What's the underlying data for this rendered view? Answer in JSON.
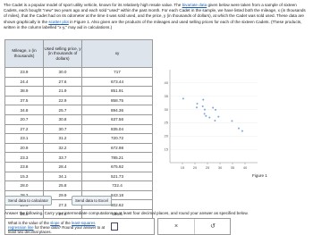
{
  "intro": [
    "The Cadet is a popular model of sport utility vehicle, known for its relatively high resale value. The ",
    "bivariate data",
    " given below were taken from a sample of sixteen Cadets, each bought \"new\" two years ago and each sold \"used\" within the past month. For each Cadet in the sample, we have listed both the mileage, x (in thousands of miles), that the Cadet had on its odometer at the time it was sold used, and the price, y (in thousands of dollars), at which the Cadet was sold used. These data are shown graphically in the ",
    "scatter plot",
    " in Figure 1. Also given are the products of the mileages and used selling prices for each of the sixteen Cadets. (These products, written in the column labelled \"x·y,\" may aid in calculations.)"
  ],
  "table": {
    "headers": [
      "Mileage, x (in thousands)",
      "Used selling price, y (in thousands of dollars)",
      "xy"
    ],
    "rows": [
      [
        "23.9",
        "30.0",
        "717"
      ],
      [
        "24.4",
        "27.6",
        "673.44"
      ],
      [
        "38.9",
        "21.9",
        "851.91"
      ],
      [
        "37.5",
        "22.9",
        "858.75"
      ],
      [
        "34.8",
        "25.7",
        "894.36"
      ],
      [
        "20.7",
        "30.8",
        "637.56"
      ],
      [
        "27.2",
        "30.7",
        "835.04"
      ],
      [
        "23.1",
        "31.2",
        "720.72"
      ],
      [
        "20.9",
        "32.2",
        "672.98"
      ],
      [
        "23.3",
        "33.7",
        "785.21"
      ],
      [
        "23.8",
        "28.4",
        "675.92"
      ],
      [
        "15.3",
        "34.1",
        "521.73"
      ],
      [
        "28.0",
        "25.8",
        "722.4"
      ],
      [
        "28.2",
        "29.9",
        "843.18"
      ],
      [
        "29.4",
        "27.3",
        "802.62"
      ],
      [
        "25.8",
        "27.0",
        "696.6"
      ]
    ]
  },
  "figure": {
    "label": "Figure 1",
    "xlim": [
      10,
      45
    ],
    "xticks": [
      15,
      20,
      25,
      30,
      35,
      40
    ],
    "ylim": [
      10,
      45
    ],
    "yticks": [
      15,
      20,
      25,
      30,
      35,
      40
    ]
  },
  "buttons": [
    "Send data to calculator",
    "Send data to Excel"
  ],
  "instruction": "Answer the following. Carry your intermediate computations to at least four decimal places, and round your answer as specified below.",
  "question": [
    "What is the value of the ",
    "slope",
    " of the ",
    "least-squares regression line",
    " for these data? Round your answer to at least two decimal places."
  ],
  "controls": [
    "×",
    "↺"
  ]
}
